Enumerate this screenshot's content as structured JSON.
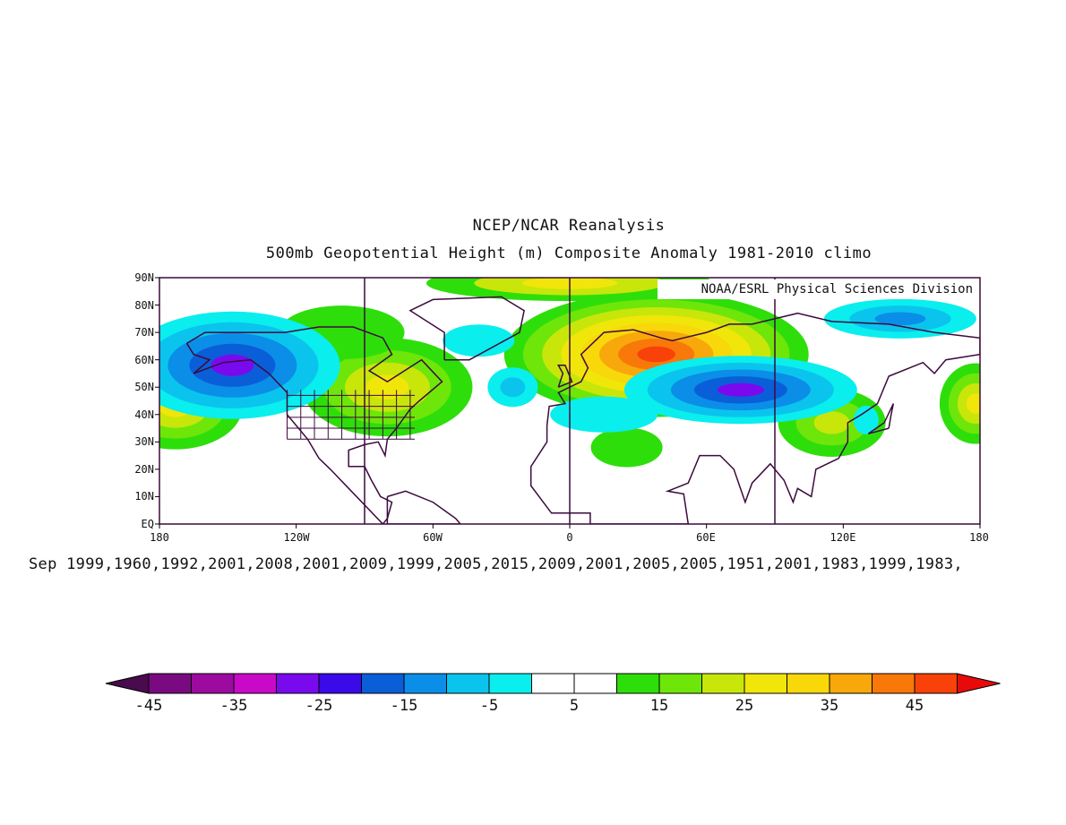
{
  "title_line1": "NCEP/NCAR Reanalysis",
  "title_line2": "500mb Geopotential Height (m) Composite Anomaly 1981-2010 climo",
  "credit": "NOAA/ESRL Physical Sciences Division",
  "years_line": "Sep 1999,1960,1992,2001,2008,2001,2009,1999,2005,2015,2009,2001,2005,2005,1951,2001,1983,1999,1983,",
  "y_axis": [
    "90N",
    "80N",
    "70N",
    "60N",
    "50N",
    "40N",
    "30N",
    "20N",
    "10N",
    "EQ"
  ],
  "x_axis": [
    "180",
    "120W",
    "60W",
    "0",
    "60E",
    "120E",
    "180"
  ],
  "colorbar": {
    "colors": [
      "#4a0a4e",
      "#7a0a80",
      "#9c0aa0",
      "#c80ac8",
      "#7a0aee",
      "#3a0ae8",
      "#0a5ed8",
      "#0a8ee8",
      "#0ac4ee",
      "#0aeeee",
      "#ffffff",
      "#ffffff",
      "#2ede0a",
      "#6ee60a",
      "#c8e60a",
      "#f0e60a",
      "#f8d80a",
      "#f8a80a",
      "#f8780a",
      "#f8420a",
      "#e80a0a"
    ],
    "labels": [
      "-45",
      "-35",
      "-25",
      "-15",
      "-5",
      "5",
      "15",
      "25",
      "35",
      "45"
    ]
  },
  "anomaly_regions": [
    {
      "name": "NE Pacific low",
      "lon": -147,
      "lat": 57,
      "value": -30
    },
    {
      "name": "Central Asia low",
      "lon": 78,
      "lat": 50,
      "value": -30
    },
    {
      "name": "NE Pacific east-high",
      "lon": -173,
      "lat": 43,
      "value": 20
    },
    {
      "name": "Eastern Canada high",
      "lon": -80,
      "lat": 52,
      "value": 20
    },
    {
      "name": "Scandinavia/Russia high",
      "lon": 40,
      "lat": 63,
      "value": 35
    },
    {
      "name": "NE Asia low",
      "lon": 140,
      "lat": 75,
      "value": -20
    },
    {
      "name": "Japan high",
      "lon": 110,
      "lat": 38,
      "value": 15
    }
  ],
  "colors": {
    "coast": "#3c0a3c",
    "frame": "#3c0a3c"
  }
}
